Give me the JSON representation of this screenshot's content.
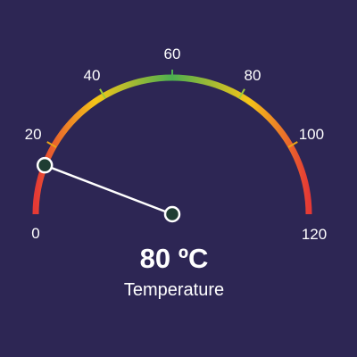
{
  "gauge": {
    "min": 0,
    "max": 120,
    "major_ticks": [
      0,
      20,
      40,
      60,
      80,
      100,
      120
    ],
    "tick_labels": [
      "0",
      "20",
      "40",
      "60",
      "80",
      "100",
      "120"
    ],
    "knob_value": 14,
    "value_text": "80 ºC",
    "label": "Temperature",
    "colors": {
      "background": "#2d2654",
      "arc_low": "#e53935",
      "arc_mid_low": "#f5c518",
      "arc_mid": "#4caf50",
      "arc_mid_high": "#f5c518",
      "arc_high": "#e53935",
      "tick": "#e8a317",
      "needle": "#ffffff",
      "knob_fill": "#1f3d33",
      "knob_stroke": "#ffffff"
    }
  }
}
